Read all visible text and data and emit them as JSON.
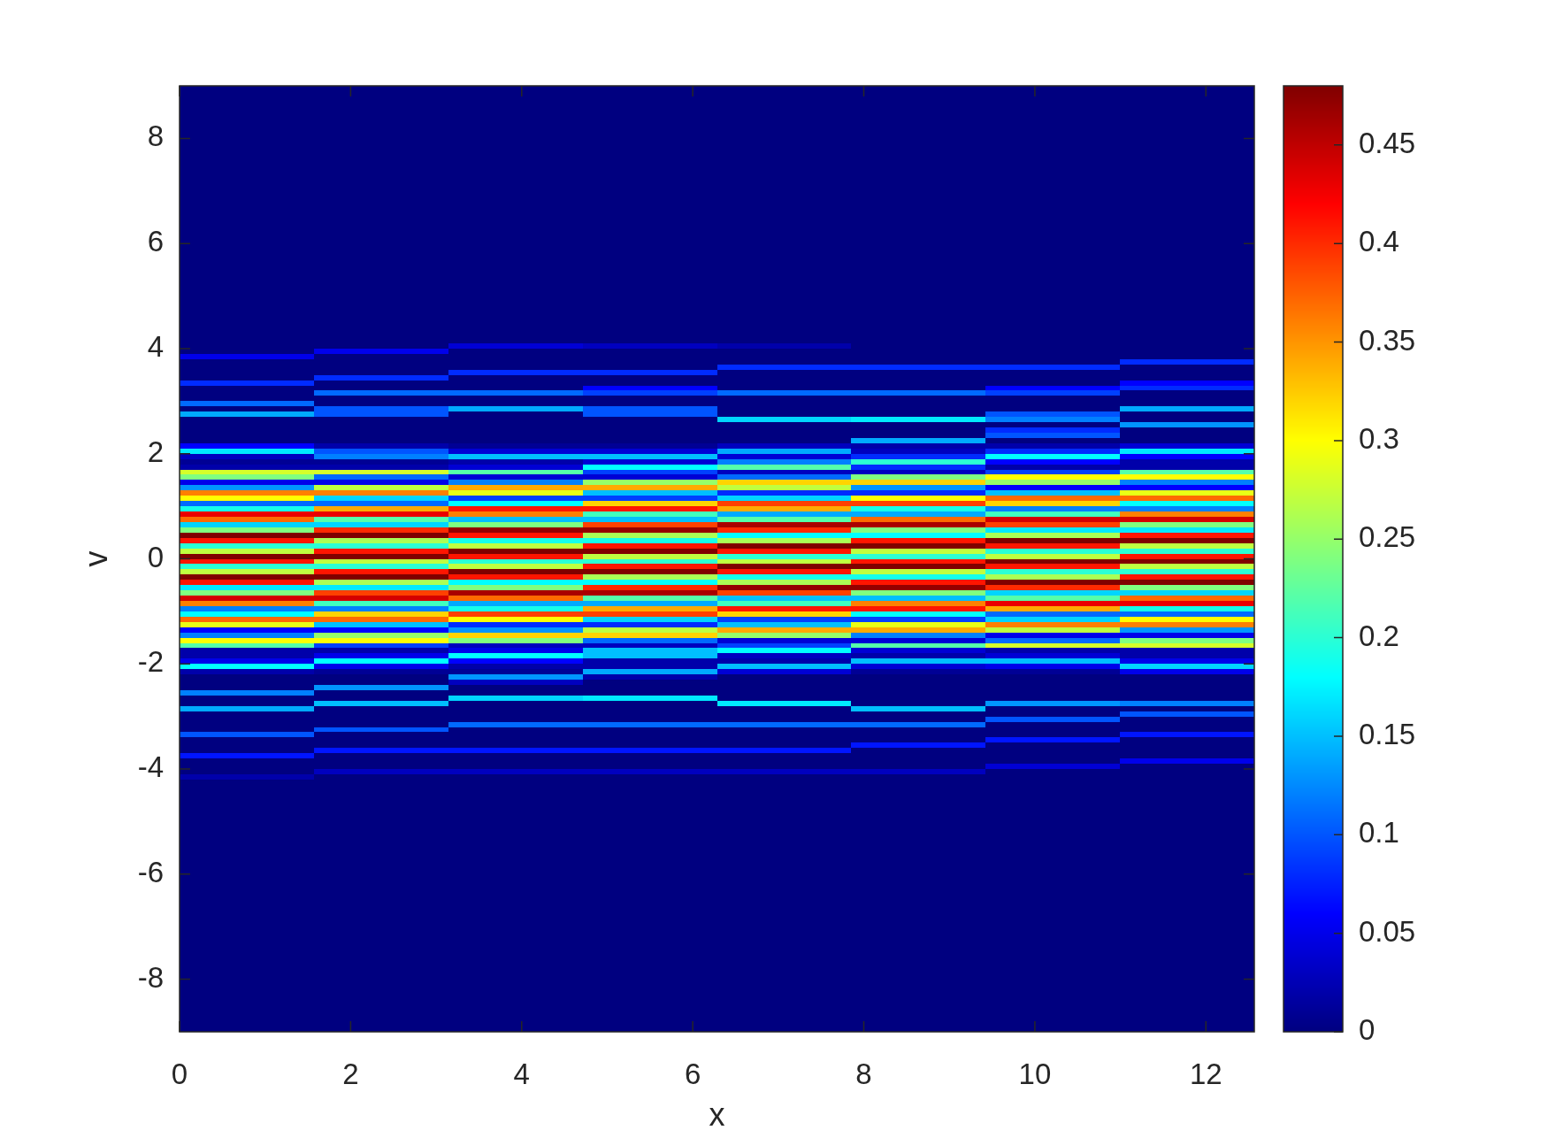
{
  "chart_data": {
    "type": "heatmap",
    "xlabel": "x",
    "ylabel": "v",
    "xlim": [
      0,
      12.566
    ],
    "xticks": [
      0,
      2,
      4,
      6,
      8,
      10,
      12
    ],
    "ylim": [
      -9,
      9
    ],
    "yticks": [
      -8,
      -6,
      -4,
      -2,
      0,
      2,
      4,
      6,
      8
    ],
    "clim": [
      0,
      0.48
    ],
    "cticks": [
      0,
      0.05,
      0.1,
      0.15,
      0.2,
      0.25,
      0.3,
      0.35,
      0.4,
      0.45
    ],
    "x": [
      0.785,
      2.356,
      3.927,
      5.498,
      7.069,
      8.639,
      10.21,
      11.781
    ],
    "y": [
      8.95,
      8.85,
      8.75,
      8.65,
      8.55,
      8.45,
      8.35,
      8.25,
      8.15,
      8.05,
      7.95,
      7.85,
      7.75,
      7.65,
      7.55,
      7.45,
      7.35,
      7.25,
      7.15,
      7.05,
      6.95,
      6.85,
      6.75,
      6.65,
      6.55,
      6.45,
      6.35,
      6.25,
      6.15,
      6.05,
      5.95,
      5.85,
      5.75,
      5.65,
      5.55,
      5.45,
      5.35,
      5.25,
      5.15,
      5.05,
      4.95,
      4.85,
      4.75,
      4.65,
      4.55,
      4.45,
      4.35,
      4.25,
      4.15,
      4.05,
      3.95,
      3.85,
      3.75,
      3.65,
      3.55,
      3.45,
      3.35,
      3.25,
      3.15,
      3.05,
      2.95,
      2.85,
      2.75,
      2.65,
      2.55,
      2.45,
      2.35,
      2.25,
      2.15,
      2.05,
      1.95,
      1.85,
      1.75,
      1.65,
      1.55,
      1.45,
      1.35,
      1.25,
      1.15,
      1.05,
      0.95,
      0.85,
      0.75,
      0.65,
      0.55,
      0.45,
      0.35,
      0.25,
      0.15,
      0.05,
      -0.05,
      -0.15,
      -0.25,
      -0.35,
      -0.45,
      -0.55,
      -0.65,
      -0.75,
      -0.85,
      -0.95,
      -1.05,
      -1.15,
      -1.25,
      -1.35,
      -1.45,
      -1.55,
      -1.65,
      -1.75,
      -1.85,
      -1.95,
      -2.05,
      -2.15,
      -2.25,
      -2.35,
      -2.45,
      -2.55,
      -2.65,
      -2.75,
      -2.85,
      -2.95,
      -3.05,
      -3.15,
      -3.25,
      -3.35,
      -3.45,
      -3.55,
      -3.65,
      -3.75,
      -3.85,
      -3.95,
      -4.05,
      -4.15,
      -4.25,
      -4.35,
      -4.45,
      -4.55,
      -4.65,
      -4.75,
      -4.85,
      -4.95,
      -5.05,
      -5.15,
      -5.25,
      -5.35,
      -5.45,
      -5.55,
      -5.65,
      -5.75,
      -5.85,
      -5.95,
      -6.05,
      -6.15,
      -6.25,
      -6.35,
      -6.45,
      -6.55,
      -6.65,
      -6.75,
      -6.85,
      -6.95,
      -7.05,
      -7.15,
      -7.25,
      -7.35,
      -7.45,
      -7.55,
      -7.65,
      -7.75,
      -7.85,
      -7.95,
      -8.05,
      -8.15,
      -8.25,
      -8.35,
      -8.45,
      -8.55,
      -8.65,
      -8.75,
      -8.85,
      -8.95
    ],
    "cells": [
      [
        0,
        0,
        0,
        0,
        0,
        0,
        0,
        0
      ],
      [
        0,
        0,
        0,
        0,
        0,
        0,
        0,
        0
      ],
      [
        0,
        0,
        0,
        0,
        0,
        0,
        0,
        0
      ],
      [
        0,
        0,
        0,
        0,
        0,
        0,
        0,
        0
      ],
      [
        0,
        0,
        0,
        0,
        0,
        0,
        0,
        0
      ],
      [
        0,
        0,
        0,
        0,
        0,
        0,
        0,
        0
      ],
      [
        0,
        0,
        0,
        0,
        0,
        0,
        0,
        0
      ],
      [
        0,
        0,
        0,
        0,
        0,
        0,
        0,
        0
      ],
      [
        0,
        0,
        0,
        0,
        0,
        0,
        0,
        0
      ],
      [
        0,
        0,
        0,
        0,
        0,
        0,
        0,
        0
      ],
      [
        0,
        0,
        0,
        0,
        0,
        0,
        0,
        0
      ],
      [
        0,
        0,
        0,
        0,
        0,
        0,
        0,
        0
      ],
      [
        0,
        0,
        0,
        0,
        0,
        0,
        0,
        0
      ],
      [
        0,
        0,
        0,
        0,
        0,
        0,
        0,
        0
      ],
      [
        0,
        0,
        0,
        0,
        0,
        0,
        0,
        0
      ],
      [
        0,
        0,
        0,
        0,
        0,
        0,
        0,
        0
      ],
      [
        0,
        0,
        0,
        0,
        0,
        0,
        0,
        0
      ],
      [
        0,
        0,
        0,
        0,
        0,
        0,
        0,
        0
      ],
      [
        0,
        0,
        0,
        0,
        0,
        0,
        0,
        0
      ],
      [
        0,
        0,
        0,
        0,
        0,
        0,
        0,
        0
      ],
      [
        0,
        0,
        0,
        0,
        0,
        0,
        0,
        0
      ],
      [
        0,
        0,
        0,
        0,
        0,
        0,
        0,
        0
      ],
      [
        0,
        0,
        0,
        0,
        0,
        0,
        0,
        0
      ],
      [
        0,
        0,
        0,
        0,
        0,
        0,
        0,
        0
      ],
      [
        0,
        0,
        0,
        0,
        0,
        0,
        0,
        0
      ],
      [
        0,
        0,
        0,
        0,
        0,
        0,
        0,
        0
      ],
      [
        0,
        0,
        0,
        0,
        0,
        0,
        0,
        0
      ],
      [
        0,
        0,
        0,
        0,
        0,
        0,
        0,
        0
      ],
      [
        0,
        0,
        0,
        0,
        0,
        0,
        0,
        0
      ],
      [
        0,
        0,
        0,
        0,
        0,
        0,
        0,
        0
      ],
      [
        0,
        0,
        0,
        0,
        0,
        0,
        0,
        0
      ],
      [
        0,
        0,
        0,
        0,
        0,
        0,
        0,
        0
      ],
      [
        0,
        0,
        0,
        0,
        0,
        0,
        0,
        0
      ],
      [
        0,
        0,
        0,
        0,
        0,
        0,
        0,
        0
      ],
      [
        0,
        0,
        0,
        0,
        0,
        0,
        0,
        0
      ],
      [
        0,
        0,
        0,
        0,
        0,
        0,
        0,
        0
      ],
      [
        0,
        0,
        0,
        0,
        0,
        0,
        0,
        0
      ],
      [
        0,
        0,
        0,
        0,
        0,
        0,
        0,
        0
      ],
      [
        0,
        0,
        0,
        0,
        0,
        0,
        0,
        0
      ],
      [
        0,
        0,
        0,
        0,
        0,
        0,
        0,
        0
      ],
      [
        0,
        0,
        0,
        0,
        0,
        0,
        0,
        0
      ],
      [
        0,
        0,
        0,
        0,
        0,
        0,
        0,
        0
      ],
      [
        0,
        0,
        0,
        0,
        0,
        0,
        0,
        0
      ],
      [
        0,
        0,
        0,
        0,
        0,
        0,
        0,
        0
      ],
      [
        0,
        0,
        0,
        0,
        0,
        0,
        0,
        0
      ],
      [
        0,
        0,
        0,
        0,
        0,
        0,
        0,
        0
      ],
      [
        0,
        0,
        0,
        0,
        0,
        0,
        0,
        0
      ],
      [
        0,
        0,
        0,
        0,
        0,
        0,
        0,
        0
      ],
      [
        0,
        0,
        0,
        0,
        0,
        0,
        0,
        0
      ],
      [
        0,
        0,
        0.04,
        0.03,
        0.02,
        0,
        0,
        0
      ],
      [
        0,
        0.05,
        0,
        0,
        0,
        0,
        0,
        0
      ],
      [
        0.05,
        0,
        0,
        0,
        0,
        0,
        0,
        0
      ],
      [
        0,
        0,
        0,
        0,
        0,
        0,
        0,
        0.08
      ],
      [
        0,
        0,
        0,
        0,
        0.08,
        0.08,
        0.08,
        0
      ],
      [
        0,
        0,
        0.08,
        0.08,
        0,
        0,
        0,
        0
      ],
      [
        0,
        0.08,
        0,
        0,
        0,
        0,
        0,
        0
      ],
      [
        0.08,
        0,
        0,
        0,
        0,
        0,
        0,
        0.06
      ],
      [
        0,
        0,
        0,
        0.06,
        0,
        0,
        0.06,
        0.08
      ],
      [
        0,
        0.11,
        0.11,
        0.09,
        0.11,
        0.11,
        0.09,
        0
      ],
      [
        0,
        0,
        0,
        0,
        0,
        0,
        0,
        0
      ],
      [
        0.11,
        0,
        0,
        0,
        0,
        0,
        0,
        0
      ],
      [
        0,
        0.1,
        0.14,
        0.1,
        0,
        0,
        0,
        0.14
      ],
      [
        0.14,
        0.1,
        0,
        0.1,
        0,
        0,
        0.1,
        0
      ],
      [
        0,
        0,
        0,
        0,
        0.16,
        0.17,
        0.12,
        0
      ],
      [
        0,
        0,
        0,
        0,
        0,
        0,
        0,
        0.13
      ],
      [
        0,
        0,
        0,
        0,
        0,
        0,
        0.08,
        0
      ],
      [
        0,
        0,
        0,
        0,
        0,
        0,
        0.1,
        0
      ],
      [
        0,
        0,
        0,
        0,
        0,
        0.14,
        0,
        0
      ],
      [
        0.06,
        0.02,
        0.01,
        0.01,
        0.03,
        0.02,
        0.02,
        0.04
      ],
      [
        0.17,
        0.1,
        0.04,
        0.04,
        0.14,
        0.03,
        0.08,
        0.17
      ],
      [
        0.03,
        0.12,
        0.15,
        0.15,
        0.04,
        0.08,
        0.18,
        0.06
      ],
      [
        0.01,
        0.01,
        0.02,
        0.04,
        0.12,
        0.2,
        0.06,
        0.02
      ],
      [
        0.02,
        0.02,
        0.04,
        0.18,
        0.22,
        0.08,
        0.02,
        0.02
      ],
      [
        0.28,
        0.28,
        0.22,
        0.09,
        0.03,
        0.03,
        0.09,
        0.22
      ],
      [
        0.24,
        0.11,
        0.04,
        0.04,
        0.11,
        0.24,
        0.3,
        0.3
      ],
      [
        0.05,
        0.05,
        0.12,
        0.25,
        0.32,
        0.32,
        0.25,
        0.12
      ],
      [
        0.13,
        0.27,
        0.34,
        0.34,
        0.27,
        0.13,
        0.06,
        0.06
      ],
      [
        0.36,
        0.36,
        0.29,
        0.15,
        0.08,
        0.08,
        0.15,
        0.29
      ],
      [
        0.3,
        0.16,
        0.09,
        0.09,
        0.16,
        0.3,
        0.37,
        0.37
      ],
      [
        0.11,
        0.11,
        0.18,
        0.32,
        0.39,
        0.39,
        0.32,
        0.18
      ],
      [
        0.19,
        0.34,
        0.41,
        0.41,
        0.34,
        0.19,
        0.12,
        0.12
      ],
      [
        0.43,
        0.43,
        0.36,
        0.21,
        0.14,
        0.14,
        0.21,
        0.36
      ],
      [
        0.37,
        0.22,
        0.15,
        0.15,
        0.22,
        0.37,
        0.44,
        0.44
      ],
      [
        0.16,
        0.16,
        0.24,
        0.39,
        0.46,
        0.46,
        0.39,
        0.24
      ],
      [
        0.24,
        0.4,
        0.47,
        0.47,
        0.4,
        0.24,
        0.17,
        0.17
      ],
      [
        0.48,
        0.48,
        0.41,
        0.26,
        0.18,
        0.18,
        0.26,
        0.41
      ],
      [
        0.41,
        0.26,
        0.19,
        0.19,
        0.26,
        0.41,
        0.48,
        0.48
      ],
      [
        0.2,
        0.2,
        0.27,
        0.41,
        0.48,
        0.48,
        0.41,
        0.27
      ],
      [
        0.27,
        0.41,
        0.48,
        0.48,
        0.41,
        0.27,
        0.2,
        0.2
      ],
      [
        0.48,
        0.48,
        0.41,
        0.27,
        0.2,
        0.2,
        0.27,
        0.41
      ],
      [
        0.41,
        0.27,
        0.2,
        0.2,
        0.27,
        0.41,
        0.48,
        0.48
      ],
      [
        0.2,
        0.2,
        0.27,
        0.41,
        0.48,
        0.48,
        0.41,
        0.27
      ],
      [
        0.27,
        0.41,
        0.48,
        0.48,
        0.41,
        0.27,
        0.2,
        0.2
      ],
      [
        0.48,
        0.48,
        0.41,
        0.26,
        0.19,
        0.19,
        0.26,
        0.41
      ],
      [
        0.41,
        0.26,
        0.18,
        0.18,
        0.26,
        0.41,
        0.48,
        0.48
      ],
      [
        0.17,
        0.17,
        0.24,
        0.4,
        0.47,
        0.47,
        0.4,
        0.24
      ],
      [
        0.24,
        0.39,
        0.46,
        0.46,
        0.39,
        0.24,
        0.16,
        0.16
      ],
      [
        0.44,
        0.44,
        0.37,
        0.22,
        0.15,
        0.15,
        0.22,
        0.37
      ],
      [
        0.36,
        0.21,
        0.14,
        0.14,
        0.21,
        0.36,
        0.43,
        0.43
      ],
      [
        0.12,
        0.12,
        0.19,
        0.34,
        0.41,
        0.41,
        0.34,
        0.19
      ],
      [
        0.18,
        0.32,
        0.39,
        0.39,
        0.32,
        0.18,
        0.11,
        0.11
      ],
      [
        0.37,
        0.37,
        0.3,
        0.16,
        0.09,
        0.09,
        0.16,
        0.3
      ],
      [
        0.29,
        0.15,
        0.08,
        0.08,
        0.15,
        0.29,
        0.36,
        0.36
      ],
      [
        0.06,
        0.06,
        0.13,
        0.27,
        0.34,
        0.34,
        0.27,
        0.13
      ],
      [
        0.12,
        0.25,
        0.32,
        0.32,
        0.25,
        0.12,
        0.05,
        0.05
      ],
      [
        0.3,
        0.3,
        0.24,
        0.11,
        0.04,
        0.04,
        0.11,
        0.24
      ],
      [
        0.22,
        0.09,
        0.03,
        0.03,
        0.09,
        0.22,
        0.28,
        0.28
      ],
      [
        0.02,
        0.02,
        0.05,
        0.15,
        0.18,
        0.04,
        0.02,
        0.02
      ],
      [
        0.02,
        0.05,
        0.18,
        0.15,
        0.03,
        0.02,
        0.04,
        0.02
      ],
      [
        0.05,
        0.18,
        0.06,
        0.02,
        0.02,
        0.15,
        0.15,
        0.05
      ],
      [
        0.18,
        0.05,
        0.02,
        0.02,
        0.15,
        0.04,
        0.05,
        0.16
      ],
      [
        0.02,
        0.01,
        0.01,
        0.14,
        0.04,
        0.01,
        0.01,
        0.05
      ],
      [
        0,
        0,
        0.13,
        0.02,
        0,
        0,
        0,
        0
      ],
      [
        0,
        0,
        0.03,
        0,
        0,
        0,
        0,
        0
      ],
      [
        0,
        0.13,
        0,
        0,
        0,
        0,
        0,
        0
      ],
      [
        0.12,
        0,
        0,
        0,
        0,
        0,
        0,
        0
      ],
      [
        0,
        0,
        0.16,
        0.17,
        0,
        0,
        0,
        0
      ],
      [
        0,
        0.15,
        0,
        0,
        0.17,
        0,
        0.13,
        0.12
      ],
      [
        0.14,
        0,
        0,
        0,
        0,
        0.15,
        0,
        0
      ],
      [
        0,
        0,
        0,
        0,
        0,
        0,
        0,
        0.1
      ],
      [
        0,
        0,
        0,
        0,
        0,
        0,
        0.1,
        0
      ],
      [
        0,
        0,
        0.11,
        0.11,
        0.11,
        0.11,
        0,
        0
      ],
      [
        0,
        0.1,
        0,
        0,
        0,
        0,
        0,
        0
      ],
      [
        0.1,
        0,
        0,
        0,
        0,
        0,
        0,
        0.07
      ],
      [
        0,
        0,
        0,
        0,
        0,
        0,
        0.07,
        0
      ],
      [
        0,
        0,
        0,
        0,
        0,
        0.07,
        0,
        0
      ],
      [
        0,
        0.07,
        0.07,
        0.07,
        0.07,
        0,
        0,
        0
      ],
      [
        0.07,
        0,
        0,
        0,
        0,
        0,
        0,
        0
      ],
      [
        0,
        0,
        0,
        0,
        0,
        0,
        0,
        0.05
      ],
      [
        0,
        0,
        0,
        0,
        0,
        0,
        0.04,
        0
      ],
      [
        0,
        0.03,
        0.03,
        0.03,
        0.03,
        0.03,
        0,
        0
      ],
      [
        0.02,
        0,
        0,
        0,
        0,
        0,
        0,
        0
      ],
      [
        0,
        0,
        0,
        0,
        0,
        0,
        0,
        0
      ],
      [
        0,
        0,
        0,
        0,
        0,
        0,
        0,
        0
      ],
      [
        0,
        0,
        0,
        0,
        0,
        0,
        0,
        0
      ],
      [
        0,
        0,
        0,
        0,
        0,
        0,
        0,
        0
      ],
      [
        0,
        0,
        0,
        0,
        0,
        0,
        0,
        0
      ],
      [
        0,
        0,
        0,
        0,
        0,
        0,
        0,
        0
      ],
      [
        0,
        0,
        0,
        0,
        0,
        0,
        0,
        0
      ],
      [
        0,
        0,
        0,
        0,
        0,
        0,
        0,
        0
      ],
      [
        0,
        0,
        0,
        0,
        0,
        0,
        0,
        0
      ],
      [
        0,
        0,
        0,
        0,
        0,
        0,
        0,
        0
      ],
      [
        0,
        0,
        0,
        0,
        0,
        0,
        0,
        0
      ],
      [
        0,
        0,
        0,
        0,
        0,
        0,
        0,
        0
      ],
      [
        0,
        0,
        0,
        0,
        0,
        0,
        0,
        0
      ],
      [
        0,
        0,
        0,
        0,
        0,
        0,
        0,
        0
      ],
      [
        0,
        0,
        0,
        0,
        0,
        0,
        0,
        0
      ],
      [
        0,
        0,
        0,
        0,
        0,
        0,
        0,
        0
      ],
      [
        0,
        0,
        0,
        0,
        0,
        0,
        0,
        0
      ],
      [
        0,
        0,
        0,
        0,
        0,
        0,
        0,
        0
      ],
      [
        0,
        0,
        0,
        0,
        0,
        0,
        0,
        0
      ],
      [
        0,
        0,
        0,
        0,
        0,
        0,
        0,
        0
      ],
      [
        0,
        0,
        0,
        0,
        0,
        0,
        0,
        0
      ],
      [
        0,
        0,
        0,
        0,
        0,
        0,
        0,
        0
      ],
      [
        0,
        0,
        0,
        0,
        0,
        0,
        0,
        0
      ],
      [
        0,
        0,
        0,
        0,
        0,
        0,
        0,
        0
      ],
      [
        0,
        0,
        0,
        0,
        0,
        0,
        0,
        0
      ],
      [
        0,
        0,
        0,
        0,
        0,
        0,
        0,
        0
      ],
      [
        0,
        0,
        0,
        0,
        0,
        0,
        0,
        0
      ],
      [
        0,
        0,
        0,
        0,
        0,
        0,
        0,
        0
      ],
      [
        0,
        0,
        0,
        0,
        0,
        0,
        0,
        0
      ],
      [
        0,
        0,
        0,
        0,
        0,
        0,
        0,
        0
      ],
      [
        0,
        0,
        0,
        0,
        0,
        0,
        0,
        0
      ],
      [
        0,
        0,
        0,
        0,
        0,
        0,
        0,
        0
      ],
      [
        0,
        0,
        0,
        0,
        0,
        0,
        0,
        0
      ],
      [
        0,
        0,
        0,
        0,
        0,
        0,
        0,
        0
      ],
      [
        0,
        0,
        0,
        0,
        0,
        0,
        0,
        0
      ],
      [
        0,
        0,
        0,
        0,
        0,
        0,
        0,
        0
      ],
      [
        0,
        0,
        0,
        0,
        0,
        0,
        0,
        0
      ],
      [
        0,
        0,
        0,
        0,
        0,
        0,
        0,
        0
      ],
      [
        0,
        0,
        0,
        0,
        0,
        0,
        0,
        0
      ],
      [
        0,
        0,
        0,
        0,
        0,
        0,
        0,
        0
      ],
      [
        0,
        0,
        0,
        0,
        0,
        0,
        0,
        0
      ],
      [
        0,
        0,
        0,
        0,
        0,
        0,
        0,
        0
      ],
      [
        0,
        0,
        0,
        0,
        0,
        0,
        0,
        0
      ],
      [
        0,
        0,
        0,
        0,
        0,
        0,
        0,
        0
      ],
      [
        0,
        0,
        0,
        0,
        0,
        0,
        0,
        0
      ],
      [
        0,
        0,
        0,
        0,
        0,
        0,
        0,
        0
      ],
      [
        0,
        0,
        0,
        0,
        0,
        0,
        0,
        0
      ],
      [
        0,
        0,
        0,
        0,
        0,
        0,
        0,
        0
      ]
    ]
  }
}
